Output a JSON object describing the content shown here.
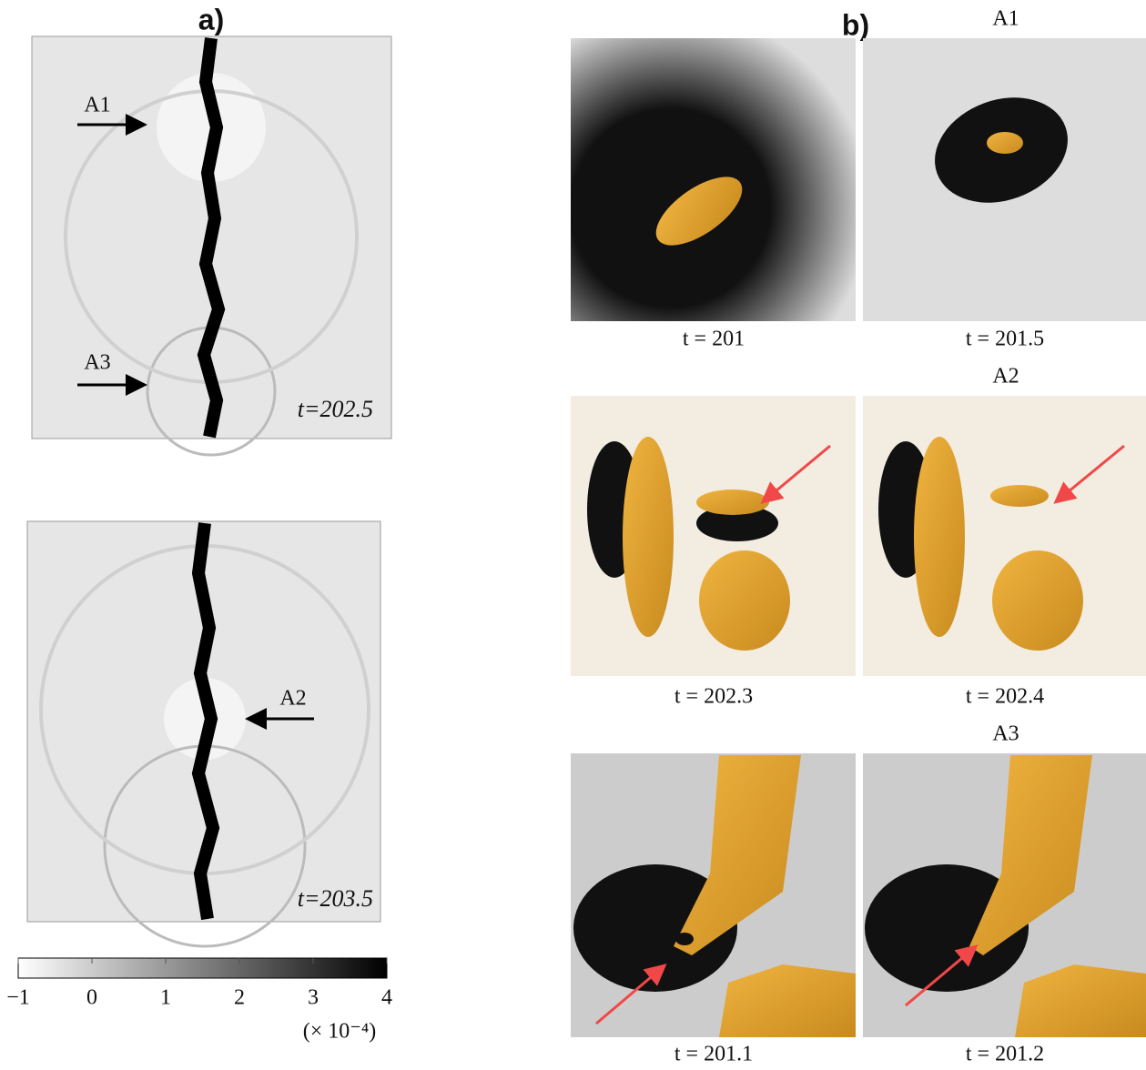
{
  "panel_a": {
    "label": "a)",
    "frames": [
      {
        "time": "t=202.5",
        "markers": [
          "A1",
          "A3"
        ]
      },
      {
        "time": "t=203.5",
        "markers": [
          "A2"
        ]
      }
    ]
  },
  "colorbar": {
    "lim": [
      -1,
      4
    ],
    "ticks": [
      {
        "value": -1,
        "label": "−1"
      },
      0,
      1,
      2,
      3,
      4
    ],
    "unit": "(× 10⁻⁴)"
  },
  "panel_b": {
    "label": "b)",
    "rows": [
      {
        "title": "A1",
        "times": [
          "t = 201",
          "t = 201.5"
        ]
      },
      {
        "title": "A2",
        "times": [
          "t = 202.3",
          "t = 202.4"
        ]
      },
      {
        "title": "A3",
        "times": [
          "t = 201.1",
          "t = 201.2"
        ]
      }
    ]
  }
}
